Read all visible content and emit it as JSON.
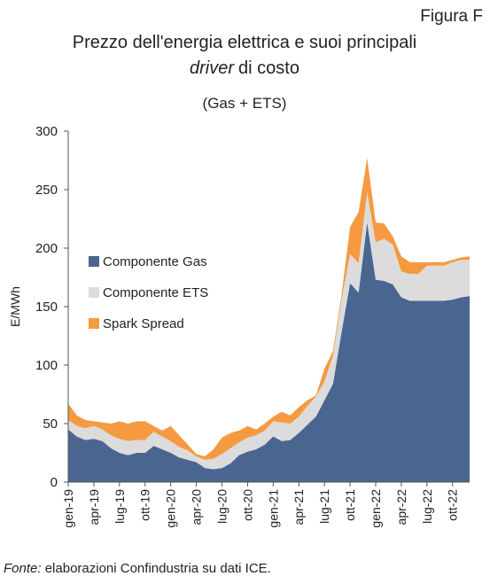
{
  "figure_label": "Figura F",
  "chart_data": {
    "type": "stacked_area",
    "title_line1": "Prezzo dell'energia elettrica e suoi principali",
    "title_line2_italic": "driver",
    "title_line2_rest": "di costo",
    "subtitle": "(Gas + ETS)",
    "ylabel": "E/MWh",
    "ylim": [
      0,
      300
    ],
    "yticks": [
      0,
      50,
      100,
      150,
      200,
      250,
      300
    ],
    "categories": [
      "gen-19",
      null,
      null,
      "apr-19",
      null,
      null,
      "lug-19",
      null,
      null,
      "ott-19",
      null,
      null,
      "gen-20",
      null,
      null,
      "apr-20",
      null,
      null,
      "lug-20",
      null,
      null,
      "ott-20",
      null,
      null,
      "gen-21",
      null,
      null,
      "apr-21",
      null,
      null,
      "lug-21",
      null,
      null,
      "ott-21",
      null,
      null,
      "gen-22",
      null,
      null,
      "apr-22",
      null,
      null,
      "lug-22",
      null,
      null,
      "ott-22",
      null,
      null
    ],
    "legend": "left",
    "series": [
      {
        "name": "Componente Gas",
        "color": "#4a6690",
        "values": [
          45,
          39,
          36,
          37,
          35,
          29,
          25,
          23,
          25,
          25,
          31,
          28,
          25,
          21,
          19,
          17,
          12,
          11,
          12,
          16,
          23,
          26,
          28,
          32,
          39,
          35,
          36,
          42,
          49,
          56,
          70,
          84,
          128,
          170,
          162,
          222,
          173,
          172,
          169,
          158,
          155,
          155,
          155,
          155,
          155,
          156,
          158,
          159
        ]
      },
      {
        "name": "Componente ETS",
        "color": "#dcdcdc",
        "values": [
          8,
          9,
          10,
          11,
          10,
          11,
          12,
          12,
          11,
          11,
          12,
          11,
          10,
          9,
          8,
          5,
          7,
          9,
          12,
          13,
          11,
          12,
          12,
          12,
          13,
          16,
          14,
          14,
          16,
          17,
          16,
          24,
          28,
          25,
          25,
          26,
          32,
          36,
          34,
          22,
          23,
          23,
          30,
          30,
          30,
          32,
          32,
          31
        ]
      },
      {
        "name": "Spark Spread",
        "color": "#f59a40",
        "values": [
          14,
          9,
          7,
          4,
          6,
          10,
          15,
          15,
          16,
          16,
          5,
          5,
          13,
          10,
          5,
          2,
          3,
          8,
          14,
          13,
          10,
          10,
          5,
          6,
          4,
          9,
          7,
          8,
          5,
          1,
          11,
          4,
          4,
          23,
          44,
          29,
          17,
          13,
          7,
          13,
          10,
          10,
          3,
          3,
          3,
          2,
          2,
          3
        ]
      }
    ]
  },
  "note_italic": "Fonte:",
  "note_text": "elaborazioni Confindustria su dati ICE."
}
